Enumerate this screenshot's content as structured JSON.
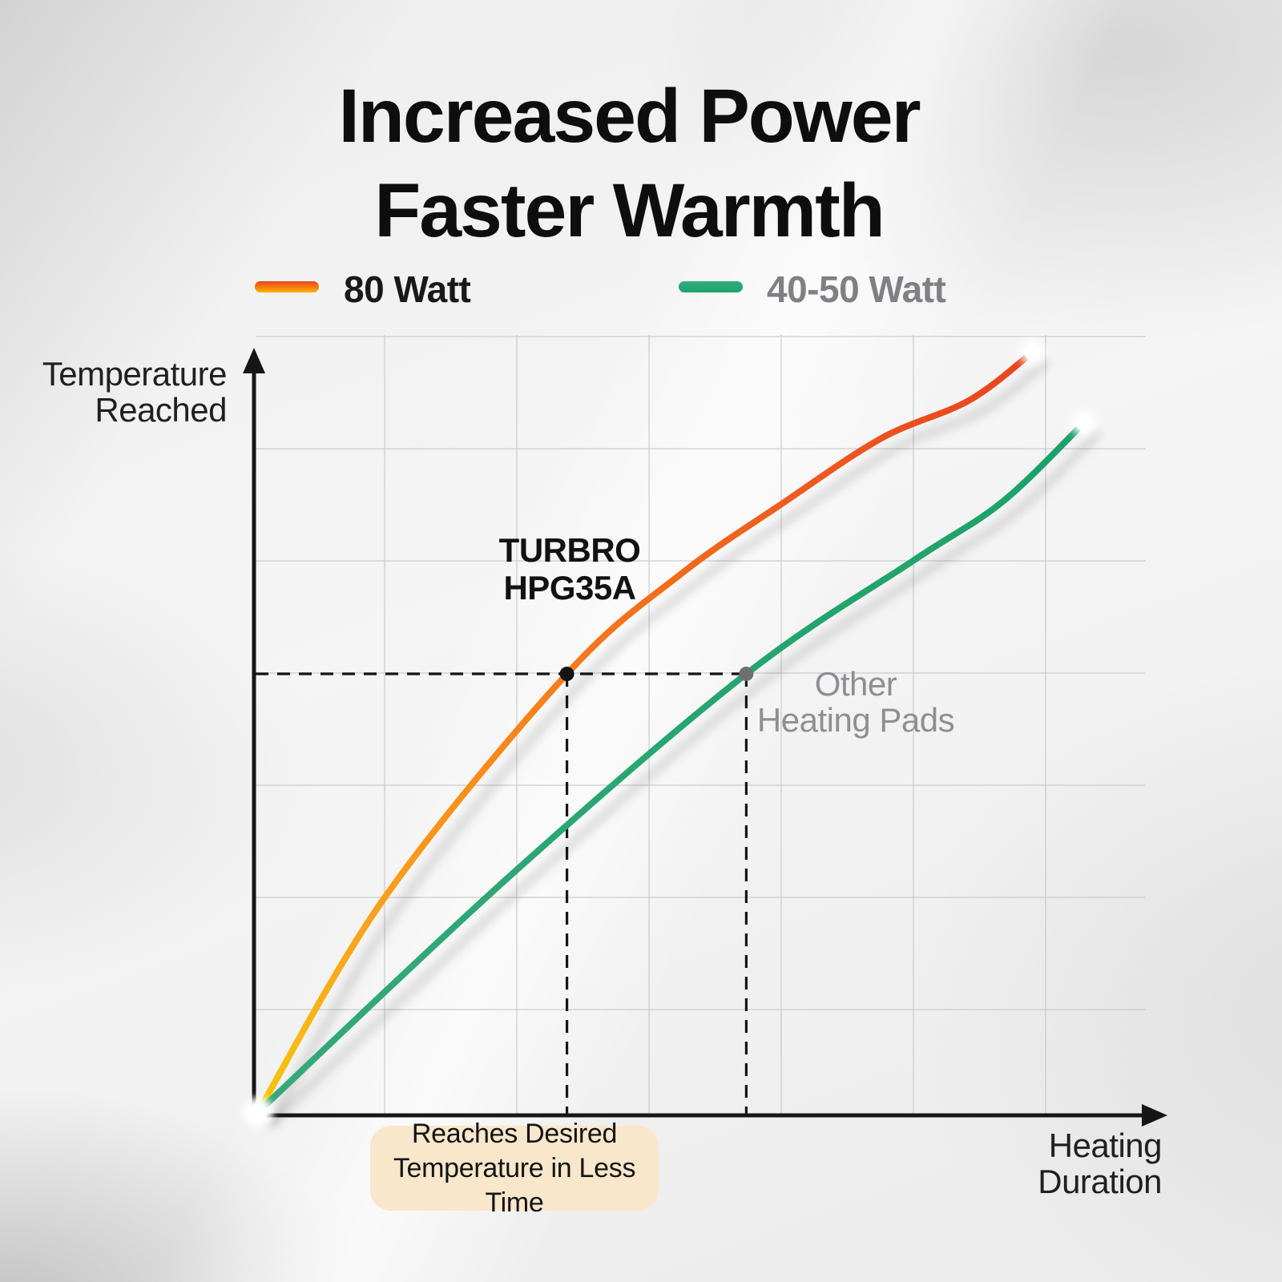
{
  "title": {
    "line1": "Increased Power",
    "line2": "Faster Warmth"
  },
  "legend": [
    {
      "label": "80 Watt",
      "swatch": "orange-gradient-line"
    },
    {
      "label": "40-50 Watt",
      "swatch": "green-line"
    }
  ],
  "axes": {
    "y_label_line1": "Temperature",
    "y_label_line2": "Reached",
    "x_label_line1": "Heating",
    "x_label_line2": "Duration"
  },
  "annotations": {
    "series1_label_line1": "TURBRO",
    "series1_label_line2": "HPG35A",
    "series2_label_line1": "Other",
    "series2_label_line2": "Heating Pads",
    "badge_line1": "Reaches Desired",
    "badge_line2": "Temperature in Less Time"
  },
  "colors": {
    "orange_top": "#E8431F",
    "orange_mid": "#F5801D",
    "orange_bottom": "#F6C60A",
    "green_light": "#35A97A",
    "green_dark": "#1CA268",
    "badge_bg": "#F9E7CC",
    "gray_label": "#8E8F92",
    "legend_gray": "#7E8084",
    "text_black": "#141414",
    "marker_gray": "#6F6F6F",
    "grid": "#C7C7C8"
  },
  "chart_data": {
    "type": "line",
    "title": "Increased Power Faster Warmth",
    "xlabel": "Heating Duration",
    "ylabel": "Temperature Reached",
    "x_range": [
      0,
      1
    ],
    "y_range": [
      0,
      1
    ],
    "grid": true,
    "legend_position": "top",
    "series": [
      {
        "name": "80 Watt",
        "annotation": "TURBRO HPG35A",
        "color": "orange-gradient (yellow at start, red-orange at end)",
        "points": [
          [
            0,
            0
          ],
          [
            0.143,
            0.283
          ],
          [
            0.348,
            0.577
          ],
          [
            0.477,
            0.709
          ],
          [
            0.589,
            0.8
          ],
          [
            0.702,
            0.887
          ],
          [
            0.801,
            0.937
          ],
          [
            0.872,
            1.0
          ]
        ],
        "marker": [
          0.348,
          0.577
        ],
        "start_dot": "white",
        "end_dot": "white",
        "marker_dot": "black"
      },
      {
        "name": "40-50 Watt",
        "annotation": "Other Heating Pads",
        "color": "green",
        "points": [
          [
            0,
            0
          ],
          [
            0.281,
            0.308
          ],
          [
            0.55,
            0.577
          ],
          [
            0.738,
            0.726
          ],
          [
            0.838,
            0.803
          ],
          [
            0.93,
            0.907
          ]
        ],
        "marker": [
          0.55,
          0.577
        ],
        "start_dot": "white",
        "end_dot": "white",
        "marker_dot": "gray"
      }
    ],
    "reference": {
      "desired_temperature_level": 0.577,
      "series1_reaches_at_x": 0.348,
      "series2_reaches_at_x": 0.55,
      "note": "Reaches Desired Temperature in Less Time"
    }
  }
}
